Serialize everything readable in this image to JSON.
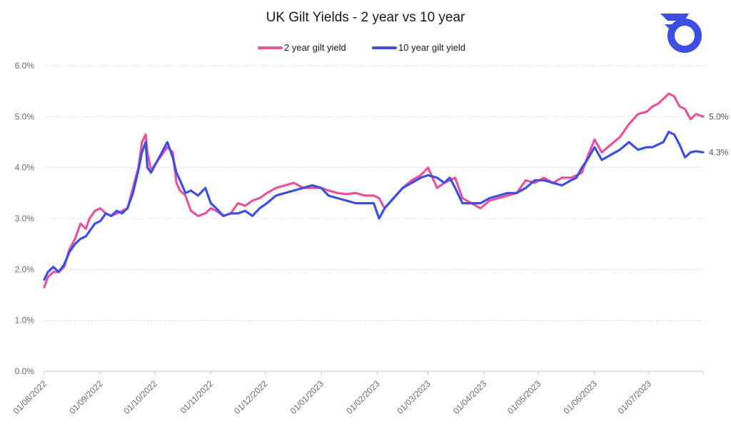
{
  "chart_data": {
    "type": "line",
    "title": "UK Gilt Yields - 2 year vs 10 year",
    "xlabel": "",
    "ylabel": "",
    "ylim": [
      0,
      6
    ],
    "yticks": [
      "0.0%",
      "1.0%",
      "2.0%",
      "3.0%",
      "4.0%",
      "5.0%",
      "6.0%"
    ],
    "ytick_values": [
      0,
      1,
      2,
      3,
      4,
      5,
      6
    ],
    "xtick_labels": [
      "01/08/2022",
      "01/09/2022",
      "01/10/2022",
      "01/11/2022",
      "01/12/2022",
      "01/01/2023",
      "01/02/2023",
      "01/03/2023",
      "01/04/2023",
      "01/05/2023",
      "01/06/2023",
      "01/07/2023"
    ],
    "xtick_dates": [
      "2022-08-01",
      "2022-09-01",
      "2022-10-01",
      "2022-11-01",
      "2022-12-01",
      "2023-01-01",
      "2023-02-01",
      "2023-03-01",
      "2023-04-01",
      "2023-05-01",
      "2023-06-01",
      "2023-07-01"
    ],
    "xlim": [
      "2022-08-01",
      "2023-07-31"
    ],
    "grid": "horizontal dotted",
    "legend": "top-center",
    "series": [
      {
        "name": "2 year gilt yield",
        "color": "#e8549b",
        "end_label": "5.0%",
        "x": [
          "2022-08-01",
          "2022-08-03",
          "2022-08-06",
          "2022-08-09",
          "2022-08-12",
          "2022-08-15",
          "2022-08-18",
          "2022-08-21",
          "2022-08-24",
          "2022-08-26",
          "2022-08-29",
          "2022-09-01",
          "2022-09-04",
          "2022-09-07",
          "2022-09-10",
          "2022-09-13",
          "2022-09-16",
          "2022-09-19",
          "2022-09-22",
          "2022-09-24",
          "2022-09-26",
          "2022-09-27",
          "2022-09-29",
          "2022-10-02",
          "2022-10-05",
          "2022-10-08",
          "2022-10-11",
          "2022-10-13",
          "2022-10-15",
          "2022-10-18",
          "2022-10-21",
          "2022-10-25",
          "2022-10-29",
          "2022-11-01",
          "2022-11-04",
          "2022-11-08",
          "2022-11-12",
          "2022-11-16",
          "2022-11-20",
          "2022-11-24",
          "2022-11-28",
          "2022-12-02",
          "2022-12-07",
          "2022-12-12",
          "2022-12-17",
          "2022-12-22",
          "2022-12-27",
          "2023-01-01",
          "2023-01-05",
          "2023-01-10",
          "2023-01-15",
          "2023-01-20",
          "2023-01-25",
          "2023-01-30",
          "2023-02-02",
          "2023-02-05",
          "2023-02-10",
          "2023-02-15",
          "2023-02-20",
          "2023-02-25",
          "2023-03-01",
          "2023-03-06",
          "2023-03-10",
          "2023-03-13",
          "2023-03-16",
          "2023-03-20",
          "2023-03-25",
          "2023-03-30",
          "2023-04-04",
          "2023-04-09",
          "2023-04-14",
          "2023-04-19",
          "2023-04-24",
          "2023-04-29",
          "2023-05-04",
          "2023-05-09",
          "2023-05-14",
          "2023-05-19",
          "2023-05-22",
          "2023-05-25",
          "2023-05-28",
          "2023-06-01",
          "2023-06-05",
          "2023-06-10",
          "2023-06-15",
          "2023-06-20",
          "2023-06-25",
          "2023-06-30",
          "2023-07-03",
          "2023-07-06",
          "2023-07-09",
          "2023-07-12",
          "2023-07-15",
          "2023-07-18",
          "2023-07-21",
          "2023-07-24",
          "2023-07-27",
          "2023-07-31"
        ],
        "y": [
          1.65,
          1.85,
          1.95,
          1.95,
          2.05,
          2.4,
          2.6,
          2.9,
          2.8,
          3.0,
          3.15,
          3.2,
          3.1,
          3.05,
          3.1,
          3.15,
          3.2,
          3.6,
          4.0,
          4.5,
          4.65,
          4.3,
          3.95,
          4.1,
          4.25,
          4.4,
          4.3,
          3.7,
          3.55,
          3.45,
          3.15,
          3.05,
          3.1,
          3.2,
          3.15,
          3.05,
          3.1,
          3.3,
          3.25,
          3.35,
          3.4,
          3.5,
          3.6,
          3.65,
          3.7,
          3.6,
          3.6,
          3.6,
          3.55,
          3.5,
          3.48,
          3.5,
          3.45,
          3.45,
          3.4,
          3.2,
          3.4,
          3.6,
          3.75,
          3.85,
          4.0,
          3.6,
          3.7,
          3.75,
          3.8,
          3.4,
          3.3,
          3.2,
          3.35,
          3.4,
          3.45,
          3.5,
          3.75,
          3.7,
          3.8,
          3.7,
          3.8,
          3.8,
          3.85,
          3.9,
          4.2,
          4.55,
          4.3,
          4.45,
          4.6,
          4.85,
          5.05,
          5.1,
          5.2,
          5.25,
          5.35,
          5.45,
          5.4,
          5.2,
          5.15,
          4.95,
          5.05,
          5.0
        ]
      },
      {
        "name": "10 year gilt yield",
        "color": "#3d4fe0",
        "end_label": "4.3%",
        "x": [
          "2022-08-01",
          "2022-08-03",
          "2022-08-06",
          "2022-08-09",
          "2022-08-12",
          "2022-08-15",
          "2022-08-18",
          "2022-08-21",
          "2022-08-24",
          "2022-08-26",
          "2022-08-29",
          "2022-09-01",
          "2022-09-04",
          "2022-09-07",
          "2022-09-10",
          "2022-09-13",
          "2022-09-16",
          "2022-09-19",
          "2022-09-22",
          "2022-09-24",
          "2022-09-26",
          "2022-09-27",
          "2022-09-29",
          "2022-10-02",
          "2022-10-05",
          "2022-10-08",
          "2022-10-11",
          "2022-10-13",
          "2022-10-15",
          "2022-10-18",
          "2022-10-21",
          "2022-10-25",
          "2022-10-29",
          "2022-11-01",
          "2022-11-04",
          "2022-11-08",
          "2022-11-12",
          "2022-11-16",
          "2022-11-20",
          "2022-11-24",
          "2022-11-28",
          "2022-12-02",
          "2022-12-07",
          "2022-12-12",
          "2022-12-17",
          "2022-12-22",
          "2022-12-27",
          "2023-01-01",
          "2023-01-05",
          "2023-01-10",
          "2023-01-15",
          "2023-01-20",
          "2023-01-25",
          "2023-01-30",
          "2023-02-02",
          "2023-02-05",
          "2023-02-10",
          "2023-02-15",
          "2023-02-20",
          "2023-02-25",
          "2023-03-01",
          "2023-03-06",
          "2023-03-10",
          "2023-03-13",
          "2023-03-16",
          "2023-03-20",
          "2023-03-25",
          "2023-03-30",
          "2023-04-04",
          "2023-04-09",
          "2023-04-14",
          "2023-04-19",
          "2023-04-24",
          "2023-04-29",
          "2023-05-04",
          "2023-05-09",
          "2023-05-14",
          "2023-05-19",
          "2023-05-22",
          "2023-05-25",
          "2023-05-28",
          "2023-06-01",
          "2023-06-05",
          "2023-06-10",
          "2023-06-15",
          "2023-06-20",
          "2023-06-25",
          "2023-06-30",
          "2023-07-03",
          "2023-07-06",
          "2023-07-09",
          "2023-07-12",
          "2023-07-15",
          "2023-07-18",
          "2023-07-21",
          "2023-07-24",
          "2023-07-27",
          "2023-07-31"
        ],
        "y": [
          1.8,
          1.95,
          2.05,
          1.95,
          2.1,
          2.35,
          2.5,
          2.6,
          2.65,
          2.75,
          2.9,
          2.95,
          3.1,
          3.05,
          3.15,
          3.1,
          3.2,
          3.5,
          3.95,
          4.3,
          4.5,
          4.0,
          3.9,
          4.1,
          4.3,
          4.5,
          4.2,
          3.9,
          3.75,
          3.5,
          3.55,
          3.45,
          3.6,
          3.3,
          3.2,
          3.05,
          3.1,
          3.1,
          3.15,
          3.05,
          3.2,
          3.3,
          3.45,
          3.5,
          3.55,
          3.6,
          3.65,
          3.6,
          3.45,
          3.4,
          3.35,
          3.3,
          3.3,
          3.3,
          3.0,
          3.2,
          3.4,
          3.6,
          3.7,
          3.8,
          3.85,
          3.8,
          3.7,
          3.8,
          3.6,
          3.3,
          3.3,
          3.3,
          3.4,
          3.45,
          3.5,
          3.5,
          3.6,
          3.75,
          3.75,
          3.7,
          3.65,
          3.75,
          3.8,
          4.0,
          4.15,
          4.4,
          4.15,
          4.25,
          4.35,
          4.5,
          4.35,
          4.4,
          4.4,
          4.45,
          4.5,
          4.7,
          4.65,
          4.45,
          4.2,
          4.3,
          4.32,
          4.3
        ]
      }
    ]
  }
}
